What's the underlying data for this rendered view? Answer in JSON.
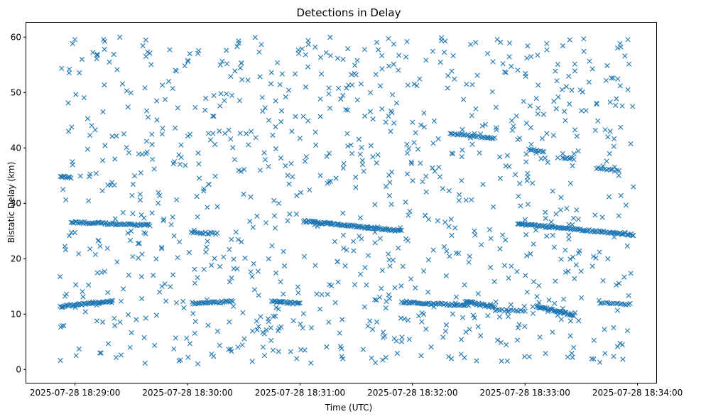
{
  "chart_data": {
    "type": "scatter",
    "title": "Detections in Delay",
    "xlabel": "Time (UTC)",
    "ylabel": "Bistatic Delay (km)",
    "marker": "x",
    "color": "#1f77b4",
    "grid": false,
    "xlim": [
      "2025-07-28 18:28:34",
      "2025-07-28 18:34:10"
    ],
    "ylim": [
      -2.4,
      62.6
    ],
    "x_ticks": [
      "2025-07-28 18:29:00",
      "2025-07-28 18:30:00",
      "2025-07-28 18:31:00",
      "2025-07-28 18:32:00",
      "2025-07-28 18:33:00",
      "2025-07-28 18:34:00"
    ],
    "y_ticks": [
      0,
      10,
      20,
      30,
      40,
      50,
      60
    ],
    "point_count_estimate": 1650,
    "tracks": [
      {
        "t_start": "2025-07-28 18:28:52",
        "t_end": "2025-07-28 18:29:20",
        "delay_start": 11.4,
        "delay_end": 12.3,
        "points": 44
      },
      {
        "t_start": "2025-07-28 18:28:52",
        "t_end": "2025-07-28 18:28:58",
        "delay_start": 34.8,
        "delay_end": 34.6,
        "points": 10
      },
      {
        "t_start": "2025-07-28 18:28:58",
        "t_end": "2025-07-28 18:29:40",
        "delay_start": 26.6,
        "delay_end": 26.0,
        "points": 60
      },
      {
        "t_start": "2025-07-28 18:30:02",
        "t_end": "2025-07-28 18:30:16",
        "delay_start": 24.8,
        "delay_end": 24.5,
        "points": 16
      },
      {
        "t_start": "2025-07-28 18:30:03",
        "t_end": "2025-07-28 18:30:24",
        "delay_start": 11.9,
        "delay_end": 12.3,
        "points": 30
      },
      {
        "t_start": "2025-07-28 18:30:45",
        "t_end": "2025-07-28 18:31:00",
        "delay_start": 12.3,
        "delay_end": 11.9,
        "points": 26
      },
      {
        "t_start": "2025-07-28 18:31:02",
        "t_end": "2025-07-28 18:31:54",
        "delay_start": 26.8,
        "delay_end": 25.0,
        "points": 90
      },
      {
        "t_start": "2025-07-28 18:31:54",
        "t_end": "2025-07-28 18:32:30",
        "delay_start": 12.1,
        "delay_end": 11.6,
        "points": 50
      },
      {
        "t_start": "2025-07-28 18:32:20",
        "t_end": "2025-07-28 18:32:44",
        "delay_start": 42.6,
        "delay_end": 41.8,
        "points": 28
      },
      {
        "t_start": "2025-07-28 18:32:28",
        "t_end": "2025-07-28 18:32:44",
        "delay_start": 12.3,
        "delay_end": 11.2,
        "points": 30
      },
      {
        "t_start": "2025-07-28 18:32:44",
        "t_end": "2025-07-28 18:33:00",
        "delay_start": 10.7,
        "delay_end": 10.6,
        "points": 14
      },
      {
        "t_start": "2025-07-28 18:33:02",
        "t_end": "2025-07-28 18:33:10",
        "delay_start": 39.8,
        "delay_end": 39.2,
        "points": 10
      },
      {
        "t_start": "2025-07-28 18:33:06",
        "t_end": "2025-07-28 18:33:26",
        "delay_start": 11.4,
        "delay_end": 9.8,
        "points": 40
      },
      {
        "t_start": "2025-07-28 18:33:20",
        "t_end": "2025-07-28 18:33:26",
        "delay_start": 38.3,
        "delay_end": 38.0,
        "points": 8
      },
      {
        "t_start": "2025-07-28 18:32:56",
        "t_end": "2025-07-28 18:33:58",
        "delay_start": 26.3,
        "delay_end": 24.3,
        "points": 95
      },
      {
        "t_start": "2025-07-28 18:33:38",
        "t_end": "2025-07-28 18:33:50",
        "delay_start": 36.3,
        "delay_end": 35.8,
        "points": 12
      },
      {
        "t_start": "2025-07-28 18:33:40",
        "t_end": "2025-07-28 18:33:56",
        "delay_start": 12.0,
        "delay_end": 11.8,
        "points": 16
      }
    ],
    "clutter": {
      "t_start": "2025-07-28 18:28:52",
      "t_end": "2025-07-28 18:33:58",
      "delay_min": 1.0,
      "delay_max": 60.0,
      "points": 1000
    }
  }
}
